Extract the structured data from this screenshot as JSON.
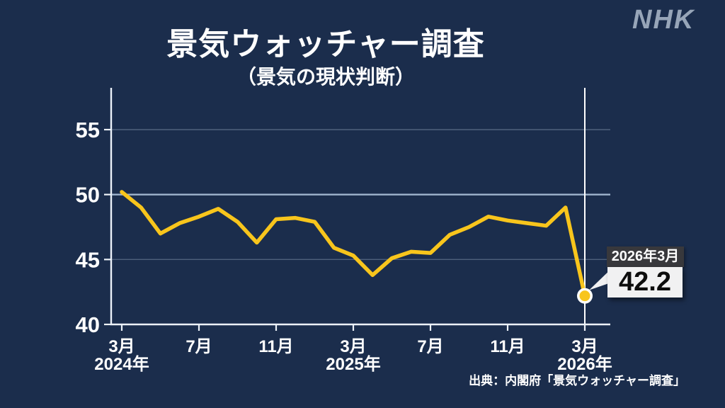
{
  "header": {
    "brand": "NHK",
    "title": "景気ウォッチャー調査",
    "subtitle": "（景気の現状判断）"
  },
  "annotation": {
    "date_label": "2026年3月",
    "value_label": "42.2"
  },
  "footer": {
    "source": "出典：内閣府「景気ウォッチャー調査」"
  },
  "colors": {
    "background": "#1b2d4c",
    "line": "#f8c51c",
    "axis": "#edf2f9",
    "grid_dim": "rgba(203,217,235,0.3)",
    "grid_highlight": "#9fb4cd",
    "highlight_vline": "#ffffff",
    "marker_ring": "#ffffff",
    "marker_fill": "#f8c51c",
    "callout_dark_bg": "#38383c",
    "callout_light_bg": "#f1f1f2",
    "brand": "#97a5b8"
  },
  "chart_data": {
    "type": "line",
    "title": "景気ウォッチャー調査（景気の現状判断）",
    "x": [
      "2024年3月",
      "2024年4月",
      "2024年5月",
      "2024年6月",
      "2024年7月",
      "2024年8月",
      "2024年9月",
      "2024年10月",
      "2024年11月",
      "2024年12月",
      "2025年1月",
      "2025年2月",
      "2025年3月",
      "2025年4月",
      "2025年5月",
      "2025年6月",
      "2025年7月",
      "2025年8月",
      "2025年9月",
      "2025年10月",
      "2025年11月",
      "2025年12月",
      "2026年1月",
      "2026年2月",
      "2026年3月"
    ],
    "values": [
      50.2,
      49.0,
      47.0,
      47.8,
      48.3,
      48.9,
      47.9,
      46.3,
      48.1,
      48.2,
      47.9,
      45.9,
      45.3,
      43.8,
      45.1,
      45.6,
      45.5,
      46.9,
      47.5,
      48.3,
      48.0,
      47.8,
      47.6,
      49.0,
      42.2
    ],
    "ylim": [
      40,
      58.2
    ],
    "yticks": [
      40,
      45,
      50,
      55
    ],
    "ytick_labels": [
      "40",
      "45",
      "50",
      "55"
    ],
    "highlight_gridline": 50,
    "grid": true,
    "xticks": [
      {
        "i": 0,
        "month": "3月",
        "year": "2024年"
      },
      {
        "i": 4,
        "month": "7月"
      },
      {
        "i": 8,
        "month": "11月"
      },
      {
        "i": 12,
        "month": "3月",
        "year": "2025年"
      },
      {
        "i": 16,
        "month": "7月"
      },
      {
        "i": 20,
        "month": "11月"
      },
      {
        "i": 24,
        "month": "3月",
        "year": "2026年"
      }
    ],
    "line_color": "#f8c51c",
    "final_point": {
      "month_index": 24,
      "label": "2026年3月",
      "value": 42.2
    }
  }
}
